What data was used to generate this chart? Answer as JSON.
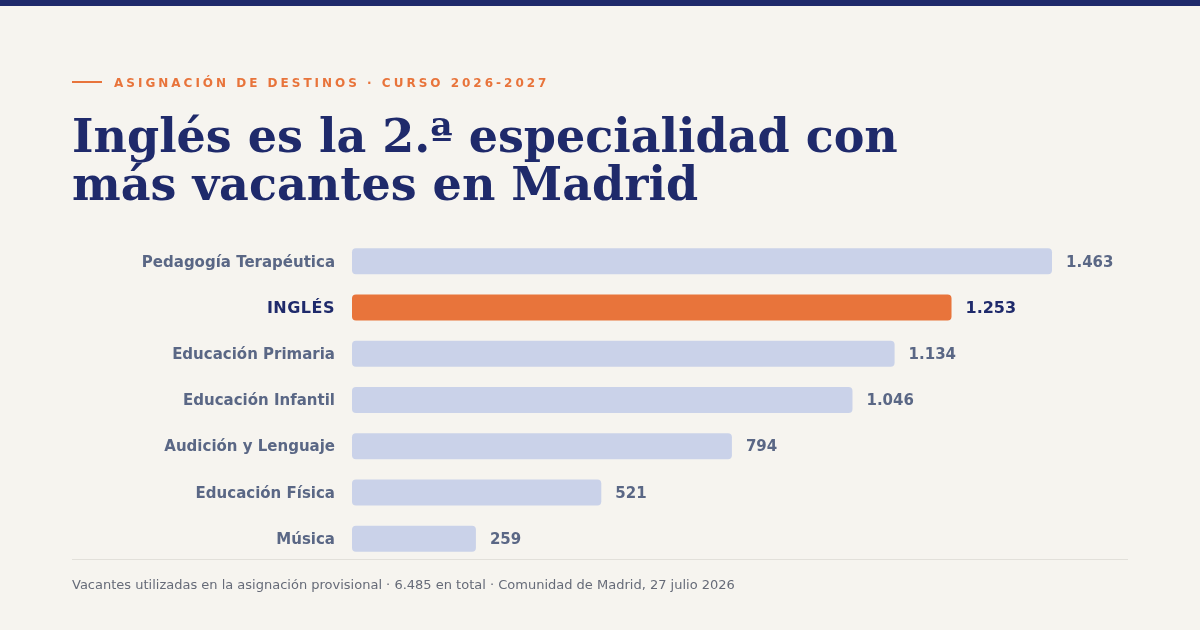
{
  "chart_data": {
    "type": "bar",
    "orientation": "horizontal",
    "title": "Inglés es la 2.ª especialidad con más vacantes en Madrid",
    "subtitle": "ASIGNACIÓN DE DESTINOS · CURSO 2026-2027",
    "categories": [
      "Pedagogía Terapéutica",
      "INGLÉS",
      "Educación Primaria",
      "Educación Infantil",
      "Audición y Lenguaje",
      "Educación Física",
      "Música"
    ],
    "values": [
      1463,
      1253,
      1134,
      1046,
      794,
      521,
      259
    ],
    "value_labels": [
      "1.463",
      "1.253",
      "1.134",
      "1.046",
      "794",
      "521",
      "259"
    ],
    "colors": [
      "#cad2e9",
      "#e8743b",
      "#cad2e9",
      "#cad2e9",
      "#cad2e9",
      "#cad2e9",
      "#cad2e9"
    ],
    "annotations": [
      "Vacantes utilizadas en la asignación provisional · 6.485 en total · Comunidad de Madrid, 27 julio 2026"
    ]
  }
}
